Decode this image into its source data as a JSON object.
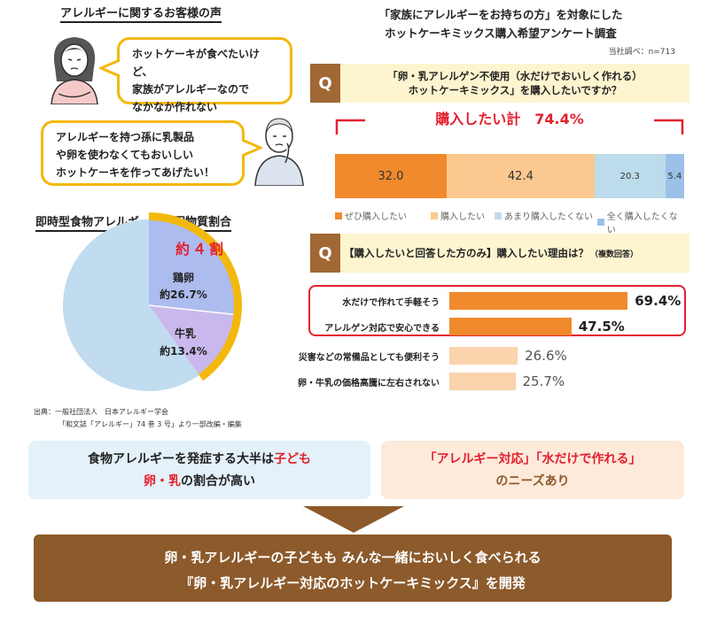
{
  "voices": {
    "title": "アレルギーに関するお客様の声",
    "quote1": [
      "ホットケーキが食べたいけど、",
      "家族がアレルギーなので",
      "なかなか作れない"
    ],
    "quote2": [
      "アレルギーを持つ孫に乳製品",
      "や卵を使わなくてもおいしい",
      "ホットケーキを作ってあげたい！"
    ]
  },
  "pie": {
    "title": "即時型食物アレルギーの原因物質割合",
    "callout": "約４割",
    "egg_name": "鶏卵",
    "egg_value": "約26.7%",
    "milk_name": "牛乳",
    "milk_value": "約13.4%",
    "source_line1": "出典：一般社団法人　日本アレルギー学会",
    "source_line2": "「和文誌「アレルギー」74 巻 3 号」より一部改編・編集"
  },
  "survey": {
    "title_line1": "「家族にアレルギーをお持ちの方」を対象にした",
    "title_line2": "ホットケーキミックス購入希望アンケート調査",
    "meta": "当社調べ：n=713",
    "q_label": "Q",
    "q1_line1": "「卵・乳アレルゲン不使用（水だけでおいしく作れる）",
    "q1_line2": "ホットケーキミックス」を購入したいですか？",
    "total": "購入したい計　74.4%",
    "q2_main": "【購入したいと回答した方のみ】購入したい理由は？",
    "q2_note": "（複数回答）"
  },
  "colors": {
    "strong_orange": "#f08a2c",
    "light_orange": "#fbc88f",
    "light_blue": "#bcdcec",
    "blue": "#9cc1e9",
    "pie_blue": "#c0dcee",
    "pie_egg": "#adbcef",
    "pie_milk": "#c9b8ec",
    "gold": "#f3b80c",
    "red": "#e3202e",
    "brown": "#8c5a2b"
  },
  "chart_data": [
    {
      "type": "pie",
      "title": "即時型食物アレルギーの原因物質割合",
      "slices": [
        {
          "name": "鶏卵",
          "value": 26.7
        },
        {
          "name": "牛乳",
          "value": 13.4
        },
        {
          "name": "",
          "value": 59.9
        }
      ]
    },
    {
      "type": "bar",
      "orientation": "horizontal-stacked",
      "legend_position": "bottom",
      "series": [
        {
          "name": "ぜひ購入したい",
          "value": 32.0,
          "label": "32.0",
          "color": "#f08a2c"
        },
        {
          "name": "購入したい",
          "value": 42.4,
          "label": "42.4",
          "color": "#fbc88f"
        },
        {
          "name": "あまり購入したくない",
          "value": 20.3,
          "label": "20.3",
          "color": "#bcdcec"
        },
        {
          "name": "全く購入したくない",
          "value": 5.4,
          "label": "5.4",
          "color": "#9cc1e9"
        }
      ]
    },
    {
      "type": "bar",
      "orientation": "horizontal",
      "xlim": [
        0,
        100
      ],
      "categories": [
        "水だけで作れて手軽そう",
        "アレルゲン対応で安心できる",
        "災害などの常備品としても便利そう",
        "卵・牛乳の価格高騰に左右されない"
      ],
      "values": [
        69.4,
        47.5,
        26.6,
        25.7
      ],
      "value_labels": [
        "69.4%",
        "47.5%",
        "26.6%",
        "25.7%"
      ]
    }
  ],
  "summary": {
    "left_line1_pre": "食物アレルギーを発症する大半は",
    "left_line1_red": "子ども",
    "left_line2_red": "卵・乳",
    "left_line2_post": "の割合が高い",
    "right_line1": "「アレルギー対応」「水だけで作れる」",
    "right_line2": "のニーズあり"
  },
  "conclusion": {
    "line1": "卵・乳アレルギーの子どもも みんな一緒においしく食べられる",
    "line2": "『卵・乳アレルギー対応のホットケーキミックス』を開発"
  }
}
